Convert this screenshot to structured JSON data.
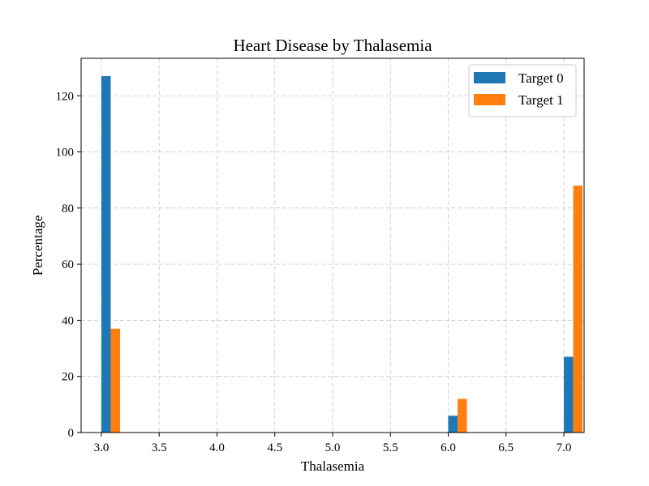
{
  "chart_data": {
    "type": "bar",
    "title": "Heart Disease by Thalasemia",
    "xlabel": "Thalasemia",
    "ylabel": "Percentage",
    "xlim": [
      2.825,
      7.175
    ],
    "ylim": [
      0,
      133.35
    ],
    "xticks": [
      3.0,
      3.5,
      4.0,
      4.5,
      5.0,
      5.5,
      6.0,
      6.5,
      7.0
    ],
    "xtick_labels": [
      "3.0",
      "3.5",
      "4.0",
      "4.5",
      "5.0",
      "5.5",
      "6.0",
      "6.5",
      "7.0"
    ],
    "yticks": [
      0,
      20,
      40,
      60,
      80,
      100,
      120
    ],
    "ytick_labels": [
      "0",
      "20",
      "40",
      "60",
      "80",
      "100",
      "120"
    ],
    "grid": true,
    "legend_position": "top-right",
    "series": [
      {
        "name": "Target 0",
        "color": "#1f77b4",
        "x": [
          3.0,
          6.0,
          7.0
        ],
        "values": [
          127,
          6,
          27
        ]
      },
      {
        "name": "Target 1",
        "color": "#ff7f0e",
        "x": [
          3.0,
          6.0,
          7.0
        ],
        "values": [
          37,
          12,
          88
        ]
      }
    ]
  }
}
